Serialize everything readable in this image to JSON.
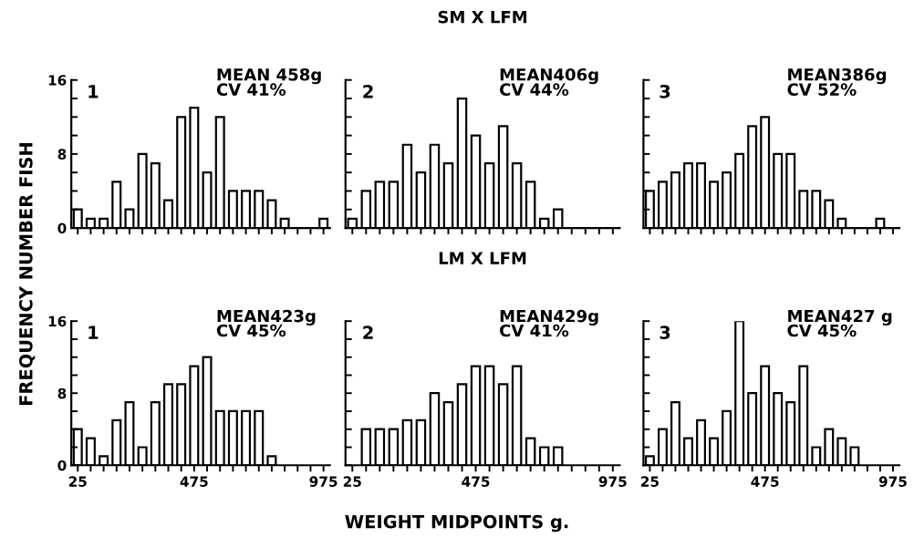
{
  "chart_data": [
    {
      "type": "histogram",
      "ylabel": "FREQUENCY NUMBER FISH",
      "annotations": [
        "1",
        "MEAN 458g",
        "CV 41%"
      ],
      "bins": [
        0,
        50,
        100,
        150,
        200,
        250,
        300,
        350,
        400,
        450,
        500,
        550,
        600,
        650,
        700,
        750,
        800,
        850,
        900,
        950,
        1000
      ],
      "values": [
        2,
        1,
        1,
        5,
        2,
        8,
        7,
        3,
        12,
        13,
        6,
        12,
        4,
        4,
        4,
        3,
        1,
        0,
        0,
        1
      ],
      "color": "#ffffff",
      "xlim": [
        0,
        1000
      ],
      "xticks": [
        25,
        {
          "value": 75,
          "label": null
        },
        {
          "value": 125,
          "label": null
        },
        {
          "value": 175,
          "label": null
        },
        {
          "value": 225,
          "label": null
        },
        {
          "value": 275,
          "label": null
        },
        {
          "value": 325,
          "label": null
        },
        {
          "value": 375,
          "label": null
        },
        {
          "value": 425,
          "label": null
        },
        475,
        {
          "value": 525,
          "label": null
        },
        {
          "value": 575,
          "label": null
        },
        {
          "value": 625,
          "label": null
        },
        {
          "value": 675,
          "label": null
        },
        {
          "value": 725,
          "label": null
        },
        {
          "value": 775,
          "label": null
        },
        {
          "value": 825,
          "label": null
        },
        {
          "value": 875,
          "label": null
        },
        {
          "value": 925,
          "label": null
        },
        975
      ],
      "ylim": [
        0,
        16
      ],
      "yticks": [
        0,
        {
          "value": 2,
          "label": null
        },
        {
          "value": 4,
          "label": null
        },
        {
          "value": 6,
          "label": null
        },
        8,
        {
          "value": 10,
          "label": null
        },
        {
          "value": 12,
          "label": null
        },
        {
          "value": 14,
          "label": null
        },
        16
      ],
      "tick_labels": "y"
    },
    {
      "type": "histogram",
      "title": "SM X LFM",
      "annotations": [
        "2",
        "MEAN406g",
        "CV 44%"
      ],
      "bins": [
        0,
        50,
        100,
        150,
        200,
        250,
        300,
        350,
        400,
        450,
        500,
        550,
        600,
        650,
        700,
        750,
        800,
        850,
        900,
        950,
        1000
      ],
      "values": [
        1,
        4,
        5,
        5,
        9,
        6,
        9,
        7,
        14,
        10,
        7,
        11,
        7,
        5,
        1,
        2,
        0,
        0,
        0,
        0
      ],
      "color": "#ffffff",
      "xlim": [
        0,
        1000
      ],
      "xticks": [
        25,
        {
          "value": 75,
          "label": null
        },
        {
          "value": 125,
          "label": null
        },
        {
          "value": 175,
          "label": null
        },
        {
          "value": 225,
          "label": null
        },
        {
          "value": 275,
          "label": null
        },
        {
          "value": 325,
          "label": null
        },
        {
          "value": 375,
          "label": null
        },
        {
          "value": 425,
          "label": null
        },
        475,
        {
          "value": 525,
          "label": null
        },
        {
          "value": 575,
          "label": null
        },
        {
          "value": 625,
          "label": null
        },
        {
          "value": 675,
          "label": null
        },
        {
          "value": 725,
          "label": null
        },
        {
          "value": 775,
          "label": null
        },
        {
          "value": 825,
          "label": null
        },
        {
          "value": 875,
          "label": null
        },
        {
          "value": 925,
          "label": null
        },
        975
      ],
      "ylim": [
        0,
        16
      ],
      "yticks": [
        0,
        {
          "value": 2,
          "label": null
        },
        {
          "value": 4,
          "label": null
        },
        {
          "value": 6,
          "label": null
        },
        8,
        {
          "value": 10,
          "label": null
        },
        {
          "value": 12,
          "label": null
        },
        {
          "value": 14,
          "label": null
        },
        16
      ],
      "tick_labels": false
    },
    {
      "type": "histogram",
      "annotations": [
        "3",
        "MEAN386g",
        "CV 52%"
      ],
      "bins": [
        0,
        50,
        100,
        150,
        200,
        250,
        300,
        350,
        400,
        450,
        500,
        550,
        600,
        650,
        700,
        750,
        800,
        850,
        900,
        950,
        1000
      ],
      "values": [
        4,
        5,
        6,
        7,
        7,
        5,
        6,
        8,
        11,
        12,
        8,
        8,
        4,
        4,
        3,
        1,
        0,
        0,
        1,
        0
      ],
      "color": "#ffffff",
      "xlim": [
        0,
        1000
      ],
      "xticks": [
        25,
        {
          "value": 75,
          "label": null
        },
        {
          "value": 125,
          "label": null
        },
        {
          "value": 175,
          "label": null
        },
        {
          "value": 225,
          "label": null
        },
        {
          "value": 275,
          "label": null
        },
        {
          "value": 325,
          "label": null
        },
        {
          "value": 375,
          "label": null
        },
        {
          "value": 425,
          "label": null
        },
        475,
        {
          "value": 525,
          "label": null
        },
        {
          "value": 575,
          "label": null
        },
        {
          "value": 625,
          "label": null
        },
        {
          "value": 675,
          "label": null
        },
        {
          "value": 725,
          "label": null
        },
        {
          "value": 775,
          "label": null
        },
        {
          "value": 825,
          "label": null
        },
        {
          "value": 875,
          "label": null
        },
        {
          "value": 925,
          "label": null
        },
        975
      ],
      "ylim": [
        0,
        16
      ],
      "yticks": [
        0,
        {
          "value": 2,
          "label": null
        },
        {
          "value": 4,
          "label": null
        },
        {
          "value": 6,
          "label": null
        },
        8,
        {
          "value": 10,
          "label": null
        },
        {
          "value": 12,
          "label": null
        },
        {
          "value": 14,
          "label": null
        },
        16
      ],
      "tick_labels": false
    },
    {
      "type": "histogram",
      "annotations": [
        "1",
        "MEAN423g",
        "CV 45%"
      ],
      "bins": [
        0,
        50,
        100,
        150,
        200,
        250,
        300,
        350,
        400,
        450,
        500,
        550,
        600,
        650,
        700,
        750,
        800,
        850,
        900,
        950,
        1000
      ],
      "values": [
        4,
        3,
        1,
        5,
        7,
        2,
        7,
        9,
        9,
        11,
        12,
        6,
        6,
        6,
        6,
        1,
        0,
        0,
        0,
        0
      ],
      "color": "#ffffff",
      "xlim": [
        0,
        1000
      ],
      "xticks": [
        25,
        {
          "value": 75,
          "label": null
        },
        {
          "value": 125,
          "label": null
        },
        {
          "value": 175,
          "label": null
        },
        {
          "value": 225,
          "label": null
        },
        {
          "value": 275,
          "label": null
        },
        {
          "value": 325,
          "label": null
        },
        {
          "value": 375,
          "label": null
        },
        {
          "value": 425,
          "label": null
        },
        475,
        {
          "value": 525,
          "label": null
        },
        {
          "value": 575,
          "label": null
        },
        {
          "value": 625,
          "label": null
        },
        {
          "value": 675,
          "label": null
        },
        {
          "value": 725,
          "label": null
        },
        {
          "value": 775,
          "label": null
        },
        {
          "value": 825,
          "label": null
        },
        {
          "value": 875,
          "label": null
        },
        {
          "value": 925,
          "label": null
        },
        975
      ],
      "ylim": [
        0,
        16
      ],
      "yticks": [
        0,
        {
          "value": 2,
          "label": null
        },
        {
          "value": 4,
          "label": null
        },
        {
          "value": 6,
          "label": null
        },
        8,
        {
          "value": 10,
          "label": null
        },
        {
          "value": 12,
          "label": null
        },
        {
          "value": 14,
          "label": null
        },
        16
      ]
    },
    {
      "type": "histogram",
      "title": "LM X LFM",
      "xlabel": "WEIGHT MIDPOINTS g.",
      "annotations": [
        "2",
        "MEAN429g",
        "CV 41%"
      ],
      "bins": [
        0,
        50,
        100,
        150,
        200,
        250,
        300,
        350,
        400,
        450,
        500,
        550,
        600,
        650,
        700,
        750,
        800,
        850,
        900,
        950,
        1000
      ],
      "values": [
        0,
        4,
        4,
        4,
        5,
        5,
        8,
        7,
        9,
        11,
        11,
        9,
        11,
        3,
        2,
        2,
        0,
        0,
        0,
        0
      ],
      "color": "#ffffff",
      "xlim": [
        0,
        1000
      ],
      "xticks": [
        25,
        {
          "value": 75,
          "label": null
        },
        {
          "value": 125,
          "label": null
        },
        {
          "value": 175,
          "label": null
        },
        {
          "value": 225,
          "label": null
        },
        {
          "value": 275,
          "label": null
        },
        {
          "value": 325,
          "label": null
        },
        {
          "value": 375,
          "label": null
        },
        {
          "value": 425,
          "label": null
        },
        475,
        {
          "value": 525,
          "label": null
        },
        {
          "value": 575,
          "label": null
        },
        {
          "value": 625,
          "label": null
        },
        {
          "value": 675,
          "label": null
        },
        {
          "value": 725,
          "label": null
        },
        {
          "value": 775,
          "label": null
        },
        {
          "value": 825,
          "label": null
        },
        {
          "value": 875,
          "label": null
        },
        {
          "value": 925,
          "label": null
        },
        975
      ],
      "ylim": [
        0,
        16
      ],
      "yticks": [
        0,
        {
          "value": 2,
          "label": null
        },
        {
          "value": 4,
          "label": null
        },
        {
          "value": 6,
          "label": null
        },
        8,
        {
          "value": 10,
          "label": null
        },
        {
          "value": 12,
          "label": null
        },
        {
          "value": 14,
          "label": null
        },
        16
      ],
      "tick_labels": "x"
    },
    {
      "type": "histogram",
      "annotations": [
        "3",
        "MEAN427 g",
        "CV 45%"
      ],
      "bins": [
        0,
        50,
        100,
        150,
        200,
        250,
        300,
        350,
        400,
        450,
        500,
        550,
        600,
        650,
        700,
        750,
        800,
        850,
        900,
        950,
        1000
      ],
      "values": [
        1,
        4,
        7,
        3,
        5,
        3,
        6,
        16,
        8,
        11,
        8,
        7,
        11,
        2,
        4,
        3,
        2,
        0,
        0,
        0
      ],
      "color": "#ffffff",
      "xlim": [
        0,
        1000
      ],
      "xticks": [
        25,
        {
          "value": 75,
          "label": null
        },
        {
          "value": 125,
          "label": null
        },
        {
          "value": 175,
          "label": null
        },
        {
          "value": 225,
          "label": null
        },
        {
          "value": 275,
          "label": null
        },
        {
          "value": 325,
          "label": null
        },
        {
          "value": 375,
          "label": null
        },
        {
          "value": 425,
          "label": null
        },
        475,
        {
          "value": 525,
          "label": null
        },
        {
          "value": 575,
          "label": null
        },
        {
          "value": 625,
          "label": null
        },
        {
          "value": 675,
          "label": null
        },
        {
          "value": 725,
          "label": null
        },
        {
          "value": 775,
          "label": null
        },
        {
          "value": 825,
          "label": null
        },
        {
          "value": 875,
          "label": null
        },
        {
          "value": 925,
          "label": null
        },
        975
      ],
      "ylim": [
        0,
        16
      ],
      "yticks": [
        0,
        {
          "value": 2,
          "label": null
        },
        {
          "value": 4,
          "label": null
        },
        {
          "value": 6,
          "label": null
        },
        8,
        {
          "value": 10,
          "label": null
        },
        {
          "value": 12,
          "label": null
        },
        {
          "value": 14,
          "label": null
        },
        16
      ],
      "tick_labels": "x"
    }
  ]
}
